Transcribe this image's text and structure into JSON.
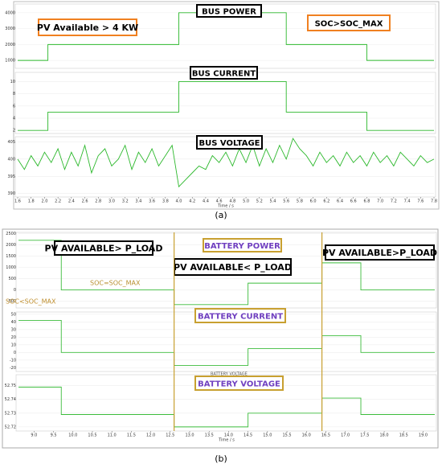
{
  "chart_data": [
    {
      "type": "line",
      "title": "BUS POWER",
      "annotations": [
        "PV Available > 4 KW",
        "SOC>SOC_MAX"
      ],
      "x": [
        1.6,
        2.05,
        2.05,
        4.0,
        4.0,
        5.6,
        5.6,
        6.8,
        6.8,
        7.8
      ],
      "xlim": [
        1.6,
        7.8
      ],
      "series": [
        {
          "color": "#2cb82c",
          "values": [
            1000,
            1000,
            2000,
            2000,
            4000,
            4000,
            2000,
            2000,
            1000,
            1000
          ]
        }
      ],
      "ylim": [
        500,
        4550
      ],
      "yticks": [
        1000,
        2000,
        3000,
        4000
      ]
    },
    {
      "type": "line",
      "title": "BUS CURRENT",
      "x": [
        1.6,
        2.05,
        2.05,
        4.0,
        4.0,
        5.6,
        5.6,
        6.8,
        6.8,
        7.8
      ],
      "xlim": [
        1.6,
        7.8
      ],
      "series": [
        {
          "color": "#2cb82c",
          "values": [
            2,
            2,
            5,
            5,
            10,
            10,
            5,
            5,
            2,
            2
          ]
        }
      ],
      "ylim": [
        1.5,
        11.5
      ],
      "yticks": [
        2,
        4,
        6,
        8,
        10
      ]
    },
    {
      "type": "line",
      "title": "BUS VOLTAGE",
      "x": [
        1.6,
        1.7,
        1.8,
        1.9,
        2.0,
        2.1,
        2.2,
        2.3,
        2.4,
        2.5,
        2.6,
        2.7,
        2.8,
        2.9,
        3.0,
        3.1,
        3.2,
        3.3,
        3.4,
        3.5,
        3.6,
        3.7,
        3.8,
        3.9,
        4.0,
        4.1,
        4.2,
        4.3,
        4.4,
        4.5,
        4.6,
        4.7,
        4.8,
        4.9,
        5.0,
        5.1,
        5.2,
        5.3,
        5.4,
        5.5,
        5.6,
        5.7,
        5.8,
        5.9,
        6.0,
        6.1,
        6.2,
        6.3,
        6.4,
        6.5,
        6.6,
        6.7,
        6.8,
        6.9,
        7.0,
        7.1,
        7.2,
        7.3,
        7.4,
        7.5,
        7.6,
        7.7,
        7.8
      ],
      "xlim": [
        1.6,
        7.8
      ],
      "series": [
        {
          "color": "#2cb82c",
          "values": [
            400,
            397,
            401,
            398,
            402,
            399,
            403,
            397,
            402,
            398,
            404,
            396,
            401,
            403,
            398,
            400,
            404,
            397,
            402,
            399,
            403,
            398,
            401,
            404,
            392,
            394,
            396,
            398,
            397,
            401,
            399,
            402,
            398,
            403,
            399,
            404,
            398,
            403,
            399,
            404,
            400,
            406,
            403,
            401,
            398,
            402,
            399,
            401,
            398,
            402,
            399,
            401,
            398,
            402,
            399,
            401,
            398,
            402,
            400,
            398,
            401,
            399,
            400
          ]
        }
      ],
      "ylim": [
        389,
        406.5
      ],
      "yticks": [
        390,
        395,
        400,
        405
      ],
      "xticks": [
        1.6,
        1.8,
        {
          "value": 2,
          "label": "2.0"
        },
        2.2,
        2.4,
        2.6,
        2.8,
        {
          "value": 3,
          "label": "3.0"
        },
        3.2,
        3.4,
        3.6,
        3.8,
        {
          "value": 4,
          "label": "4.0"
        },
        4.2,
        4.4,
        4.6,
        4.8,
        {
          "value": 5,
          "label": "5.0"
        },
        5.2,
        5.4,
        5.6,
        5.8,
        {
          "value": 6,
          "label": "6.0"
        },
        6.2,
        6.4,
        6.6,
        6.8,
        {
          "value": 7,
          "label": "7.0"
        },
        7.2,
        7.4,
        7.6,
        7.8
      ],
      "x_label": "Time / s",
      "caption": "(a)"
    },
    {
      "type": "line",
      "title": "BATTERY POWER",
      "annotations": [
        "PV AVAILABLE> P_LOAD",
        "PV AVAILABLE< P_LOAD",
        "PV AVAILABLE>P_LOAD",
        "SOC=SOC_MAX",
        "SOC<SOC_MAX"
      ],
      "x": [
        8.6,
        9.7,
        9.7,
        12.6,
        12.6,
        14.5,
        14.5,
        16.4,
        16.4,
        17.4,
        17.4,
        19.3
      ],
      "xlim": [
        8.6,
        19.3
      ],
      "vlines": [
        12.6,
        16.4
      ],
      "series": [
        {
          "color": "#3cbc3c",
          "values": [
            2200,
            2200,
            0,
            0,
            -650,
            -650,
            300,
            300,
            1200,
            1200,
            0,
            0
          ]
        }
      ],
      "ylim": [
        -800,
        2550
      ],
      "yticks": [
        -500,
        0,
        500,
        1000,
        1500,
        2000,
        2500
      ]
    },
    {
      "type": "line",
      "title": "BATTERY CURRENT",
      "x": [
        8.6,
        9.7,
        9.7,
        12.6,
        12.6,
        14.5,
        14.5,
        16.4,
        16.4,
        17.4,
        17.4,
        19.3
      ],
      "xlim": [
        8.6,
        19.3
      ],
      "series": [
        {
          "color": "#3cbc3c",
          "values": [
            42,
            42,
            0,
            0,
            -17,
            -17,
            5,
            5,
            22,
            22,
            0,
            0
          ]
        }
      ],
      "ylim": [
        -25,
        53
      ],
      "yticks": [
        -20,
        -10,
        0,
        10,
        20,
        30,
        40,
        50
      ]
    },
    {
      "type": "line",
      "title": "BATTERY VOLTAGE",
      "annotations": [
        "BATTERY VOLTAGE"
      ],
      "x": [
        8.6,
        9.7,
        9.7,
        12.6,
        12.6,
        14.5,
        14.5,
        16.4,
        16.4,
        17.4,
        17.4,
        19.3
      ],
      "xlim": [
        8.6,
        19.3
      ],
      "series": [
        {
          "color": "#3cbc3c",
          "values": [
            52.749,
            52.749,
            52.729,
            52.729,
            52.72,
            52.72,
            52.73,
            52.73,
            52.741,
            52.741,
            52.729,
            52.729
          ]
        }
      ],
      "ylim": [
        52.717,
        52.758
      ],
      "yticks": [
        52.72,
        52.73,
        52.74,
        52.75
      ],
      "xticks": [
        {
          "value": 9,
          "label": "9.0"
        },
        9.5,
        {
          "value": 10,
          "label": "10.0"
        },
        10.5,
        {
          "value": 11,
          "label": "11.0"
        },
        11.5,
        {
          "value": 12,
          "label": "12.0"
        },
        12.5,
        {
          "value": 13,
          "label": "13.0"
        },
        13.5,
        {
          "value": 14,
          "label": "14.0"
        },
        14.5,
        {
          "value": 15,
          "label": "15.0"
        },
        15.5,
        {
          "value": 16,
          "label": "16.0"
        },
        16.5,
        {
          "value": 17,
          "label": "17.0"
        },
        17.5,
        {
          "value": 18,
          "label": "18.0"
        },
        18.5,
        {
          "value": 19,
          "label": "19.0"
        }
      ],
      "x_label": "Time / s",
      "caption": "(b)"
    }
  ]
}
